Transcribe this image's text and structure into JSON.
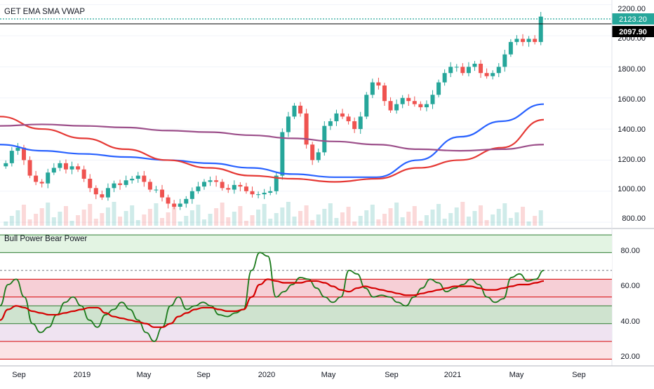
{
  "main_panel": {
    "title": "GET EMA SMA VWAP",
    "y_ticks": [
      "2200.00",
      "2000.00",
      "1800.00",
      "1600.00",
      "1400.00",
      "1200.00",
      "1000.00",
      "800.00"
    ],
    "last_price_label": "2123.20",
    "second_price_label": "2097.90"
  },
  "lower_panel": {
    "title": "Bull Power Bear Power",
    "y_ticks": [
      "80.00",
      "60.00",
      "40.00",
      "20.00"
    ]
  },
  "x_axis": {
    "labels": [
      "Sep",
      "2019",
      "May",
      "Sep",
      "2020",
      "May",
      "Sep",
      "2021",
      "May",
      "Sep"
    ]
  },
  "colors": {
    "up": "#26a69a",
    "down": "#ef5350",
    "ema_blue": "#2962ff",
    "ema_red": "#e53935",
    "vwap_purple": "#9c4f8a",
    "osc_green": "#1b7a1b",
    "osc_red": "#d50000",
    "last_price_bg": "#26a69a",
    "second_price_bg": "#000000"
  },
  "chart_data": [
    {
      "type": "candlestick",
      "title": "GET EMA SMA VWAP",
      "ylim": [
        760,
        2230
      ],
      "x_labels": [
        "Sep",
        "2019",
        "May",
        "Sep",
        "2020",
        "May",
        "Sep",
        "2021",
        "May",
        "Sep"
      ],
      "series": [
        {
          "name": "price_close",
          "values": [
            1180,
            1260,
            1280,
            1200,
            1100,
            1060,
            1050,
            1120,
            1150,
            1180,
            1140,
            1160,
            1140,
            1080,
            1020,
            980,
            960,
            1020,
            1050,
            1040,
            1070,
            1080,
            1100,
            1060,
            1010,
            1010,
            960,
            920,
            900,
            920,
            950,
            1000,
            1030,
            1060,
            1070,
            1060,
            1020,
            1010,
            1040,
            1030,
            1000,
            980,
            980,
            990,
            1000,
            1100,
            1380,
            1480,
            1550,
            1500,
            1300,
            1200,
            1250,
            1420,
            1450,
            1500,
            1480,
            1450,
            1400,
            1480,
            1620,
            1700,
            1680,
            1580,
            1520,
            1560,
            1600,
            1580,
            1560,
            1540,
            1560,
            1620,
            1700,
            1760,
            1800,
            1800,
            1760,
            1800,
            1820,
            1760,
            1740,
            1760,
            1800,
            1880,
            1960,
            1980,
            1960,
            1980,
            1960,
            2123.2
          ]
        },
        {
          "name": "EMA blue",
          "values": [
            1300,
            1260,
            1240,
            1220,
            1200,
            1180,
            1150,
            1110,
            1090,
            1090,
            1200,
            1350,
            1450,
            1560
          ]
        },
        {
          "name": "EMA red",
          "values": [
            1480,
            1400,
            1340,
            1270,
            1200,
            1150,
            1100,
            1080,
            1060,
            1080,
            1150,
            1200,
            1280,
            1460
          ]
        },
        {
          "name": "VWAP purple",
          "values": [
            1420,
            1430,
            1420,
            1410,
            1390,
            1380,
            1360,
            1340,
            1320,
            1300,
            1270,
            1260,
            1270,
            1300
          ]
        }
      ]
    },
    {
      "type": "line",
      "title": "Bull Power Bear Power",
      "ylim": [
        17,
        92
      ],
      "series": [
        {
          "name": "green",
          "values": [
            50,
            62,
            65,
            55,
            40,
            35,
            38,
            45,
            52,
            55,
            50,
            42,
            38,
            45,
            48,
            52,
            48,
            42,
            35,
            30,
            38,
            50,
            55,
            48,
            50,
            52,
            50,
            45,
            44,
            46,
            48,
            70,
            80,
            78,
            55,
            58,
            62,
            66,
            65,
            60,
            55,
            52,
            55,
            70,
            68,
            60,
            55,
            56,
            55,
            52,
            50,
            55,
            60,
            65,
            63,
            58,
            60,
            62,
            65,
            62,
            55,
            52,
            54,
            66,
            68,
            64,
            65,
            70
          ]
        },
        {
          "name": "red",
          "values": [
            42,
            48,
            50,
            49,
            47,
            46,
            45,
            45,
            46,
            47,
            48,
            49,
            49,
            46,
            44,
            43,
            42,
            41,
            40,
            38,
            38,
            40,
            44,
            46,
            48,
            49,
            49,
            48,
            47,
            47,
            48,
            55,
            62,
            65,
            64,
            63,
            63,
            63,
            64,
            64,
            63,
            61,
            59,
            58,
            60,
            61,
            60,
            59,
            58,
            57,
            56,
            56,
            57,
            58,
            59,
            60,
            61,
            61,
            61,
            60,
            59,
            59,
            60,
            61,
            62,
            62,
            63,
            64
          ]
        }
      ]
    }
  ]
}
